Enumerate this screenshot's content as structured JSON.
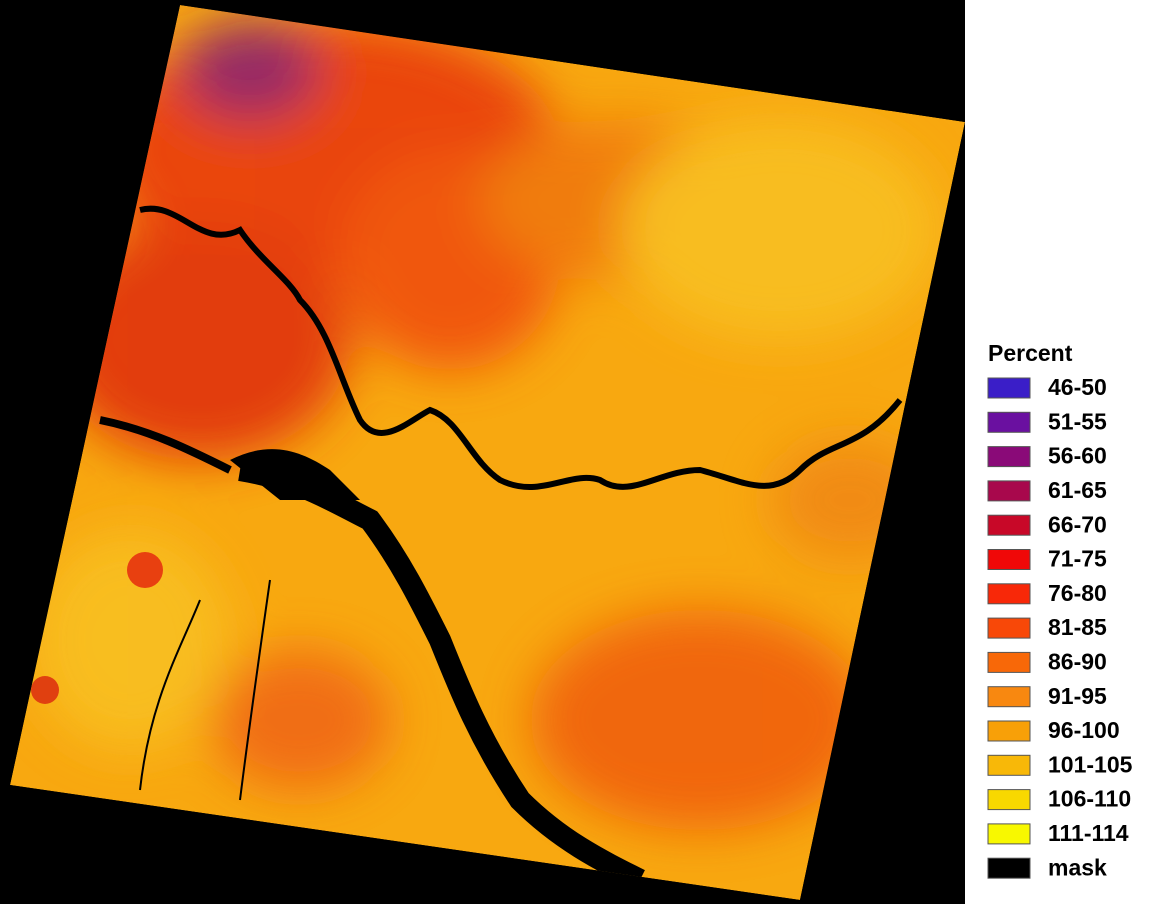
{
  "legend": {
    "title": "Percent",
    "items": [
      {
        "label": "46-50",
        "color": "#3a1ec8"
      },
      {
        "label": "51-55",
        "color": "#6a10a0"
      },
      {
        "label": "56-60",
        "color": "#8a0a78"
      },
      {
        "label": "61-65",
        "color": "#a8084c"
      },
      {
        "label": "66-70",
        "color": "#c80828"
      },
      {
        "label": "71-75",
        "color": "#f00808"
      },
      {
        "label": "76-80",
        "color": "#f82808"
      },
      {
        "label": "81-85",
        "color": "#f84808"
      },
      {
        "label": "86-90",
        "color": "#f86808"
      },
      {
        "label": "91-95",
        "color": "#f88810"
      },
      {
        "label": "96-100",
        "color": "#f8a008"
      },
      {
        "label": "101-105",
        "color": "#f8b808"
      },
      {
        "label": "106-110",
        "color": "#f8d800"
      },
      {
        "label": "111-114",
        "color": "#f8f800"
      },
      {
        "label": "mask",
        "color": "#000000"
      }
    ]
  }
}
